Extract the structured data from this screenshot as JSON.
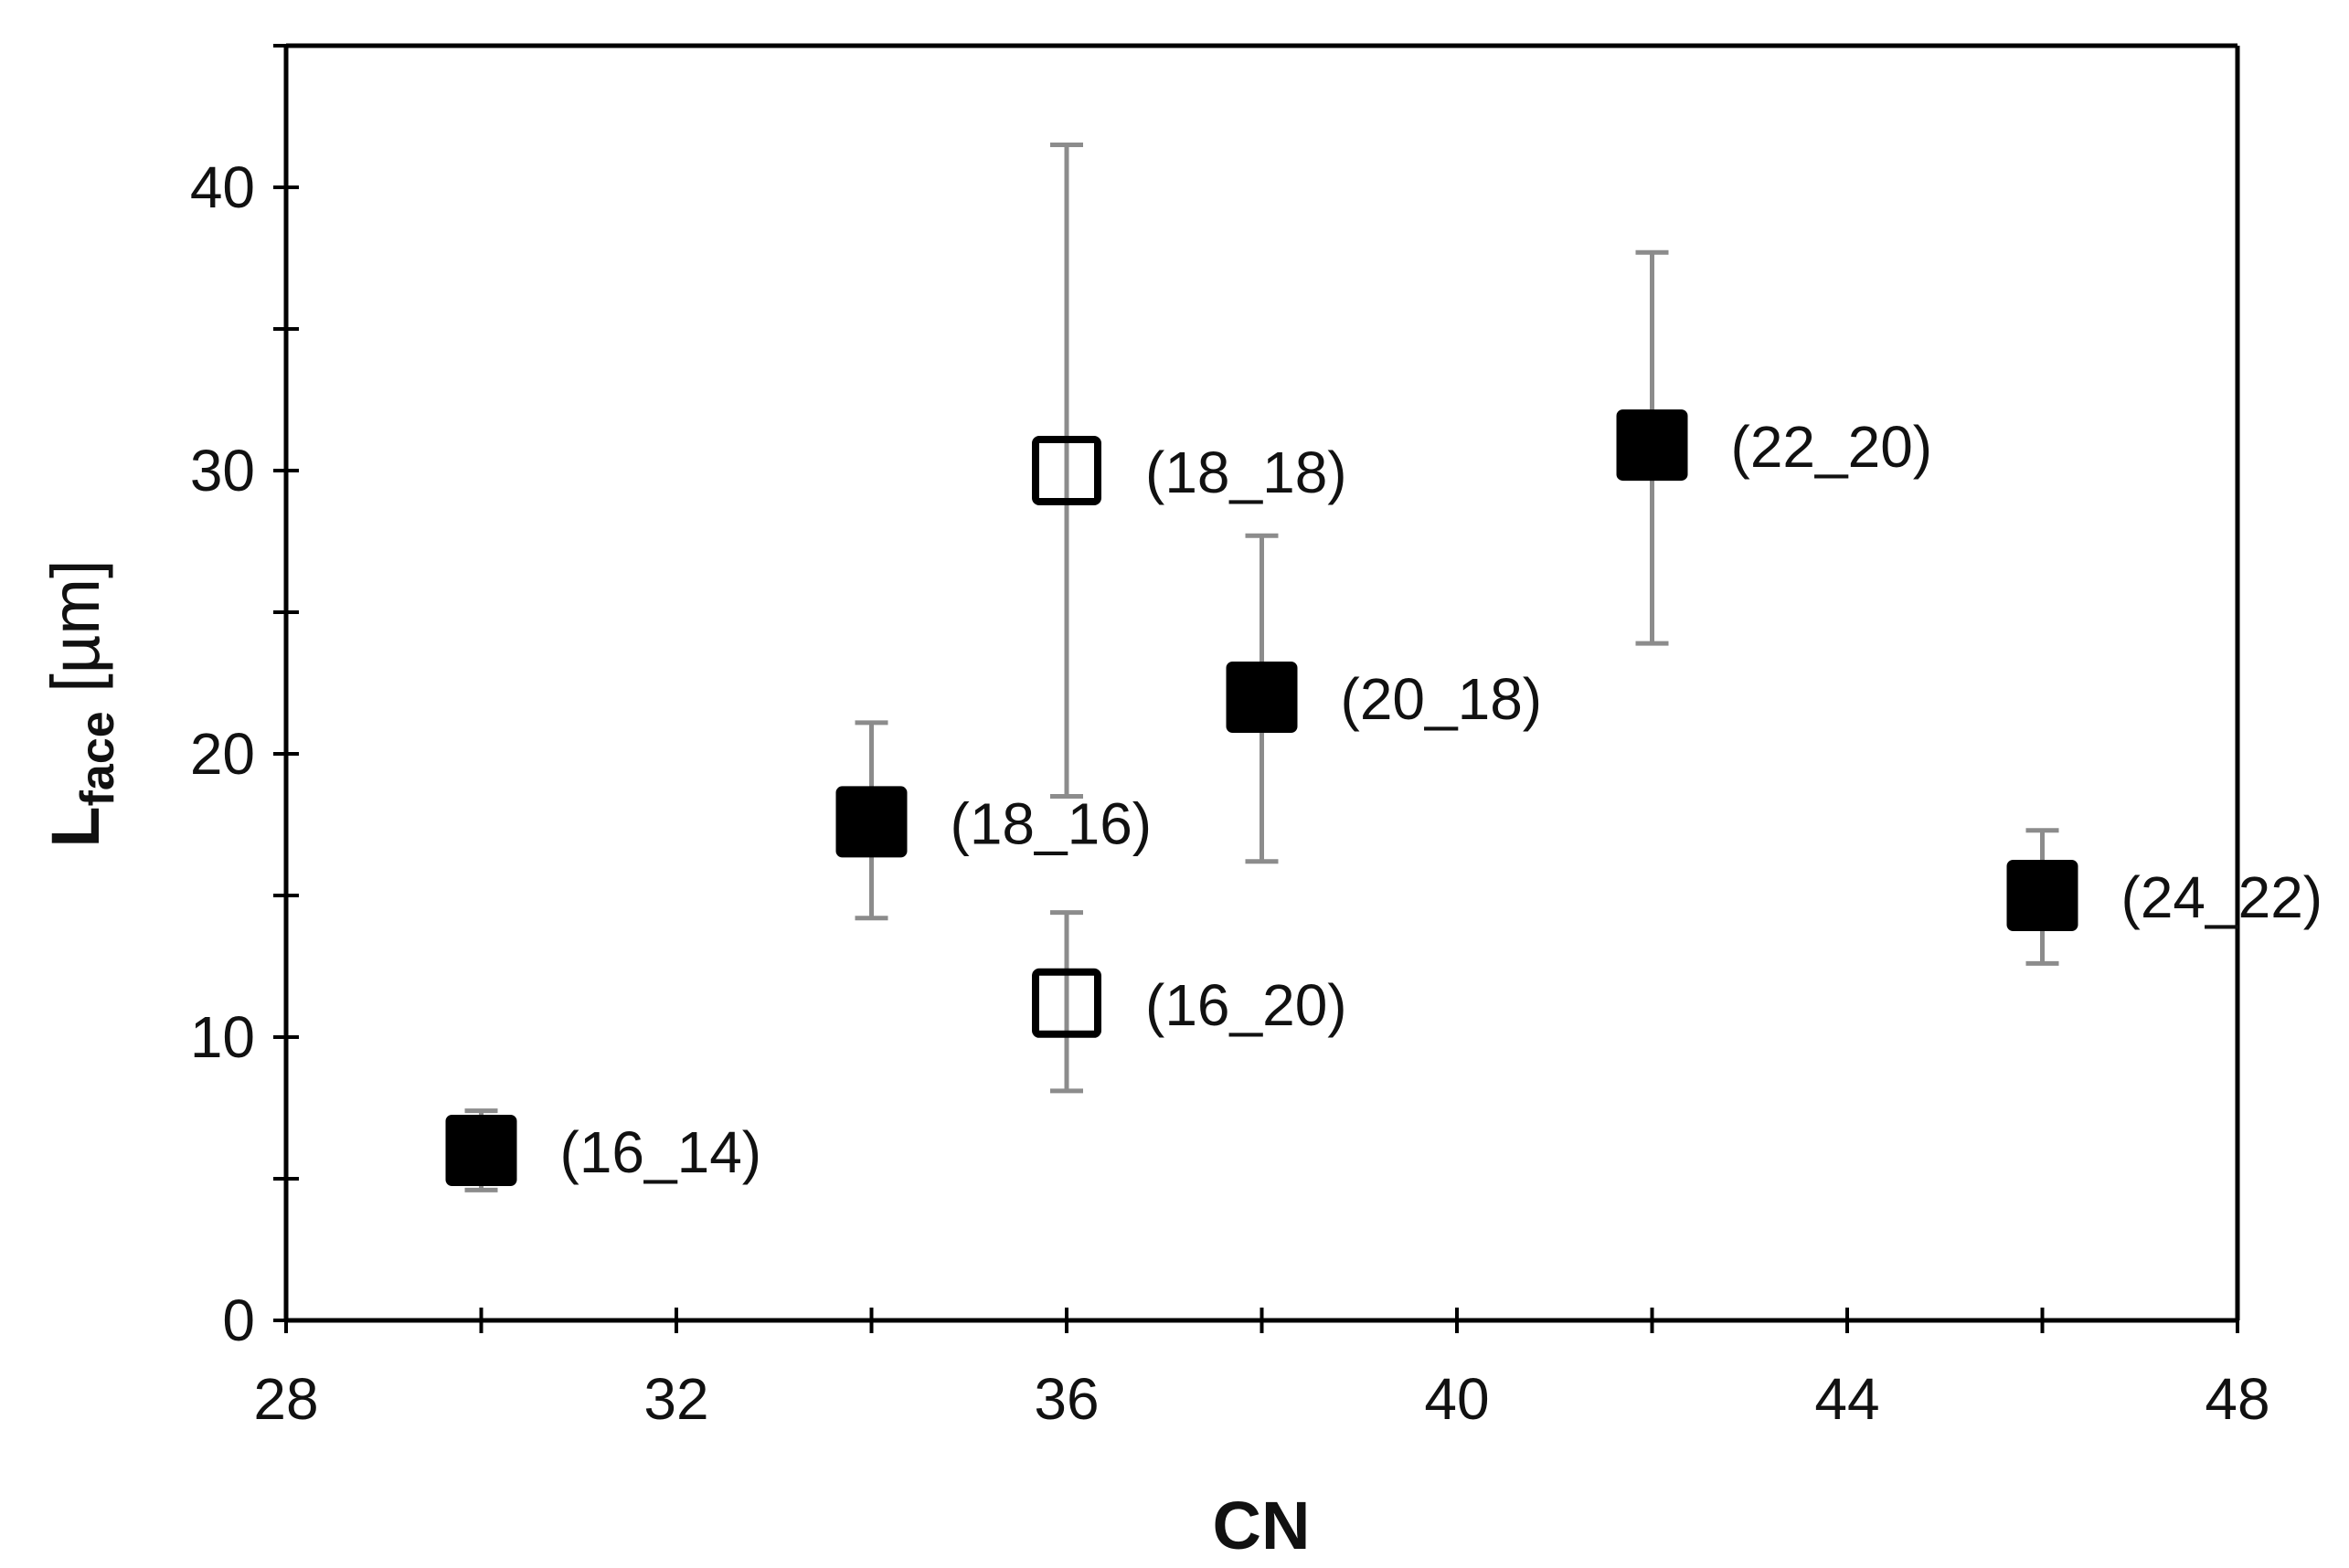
{
  "chart_data": {
    "type": "scatter",
    "title": "",
    "xlabel": "CN",
    "ylabel_main": "L",
    "ylabel_sub": "face",
    "ylabel_unit": " [µm]",
    "xlim": [
      28,
      48
    ],
    "ylim": [
      0,
      45
    ],
    "x_major_ticks": [
      28,
      32,
      36,
      40,
      44,
      48
    ],
    "x_minor_ticks": [
      30,
      34,
      38,
      42,
      46
    ],
    "y_major_ticks": [
      0,
      10,
      20,
      30,
      40
    ],
    "y_minor_ticks": [
      5,
      15,
      25,
      35,
      45
    ],
    "grid": false,
    "legend": "none",
    "colors": {
      "marker": "#000000",
      "error_bar": "#8c8c8c",
      "axis": "#000000"
    },
    "points": [
      {
        "label": "(16_14)",
        "x": 30,
        "y": 6.0,
        "err_low": 4.6,
        "err_high": 7.4,
        "filled": true
      },
      {
        "label": "(18_16)",
        "x": 34,
        "y": 17.6,
        "err_low": 14.2,
        "err_high": 21.1,
        "filled": true
      },
      {
        "label": "(18_18)",
        "x": 36,
        "y": 30.0,
        "err_low": 18.5,
        "err_high": 41.5,
        "filled": false
      },
      {
        "label": "(16_20)",
        "x": 36,
        "y": 11.2,
        "err_low": 8.1,
        "err_high": 14.4,
        "filled": false
      },
      {
        "label": "(20_18)",
        "x": 38,
        "y": 22.0,
        "err_low": 16.2,
        "err_high": 27.7,
        "filled": true
      },
      {
        "label": "(22_20)",
        "x": 42,
        "y": 30.9,
        "err_low": 23.9,
        "err_high": 37.7,
        "filled": true
      },
      {
        "label": "(24_22)",
        "x": 46,
        "y": 15.0,
        "err_low": 12.6,
        "err_high": 17.3,
        "filled": true
      }
    ]
  }
}
